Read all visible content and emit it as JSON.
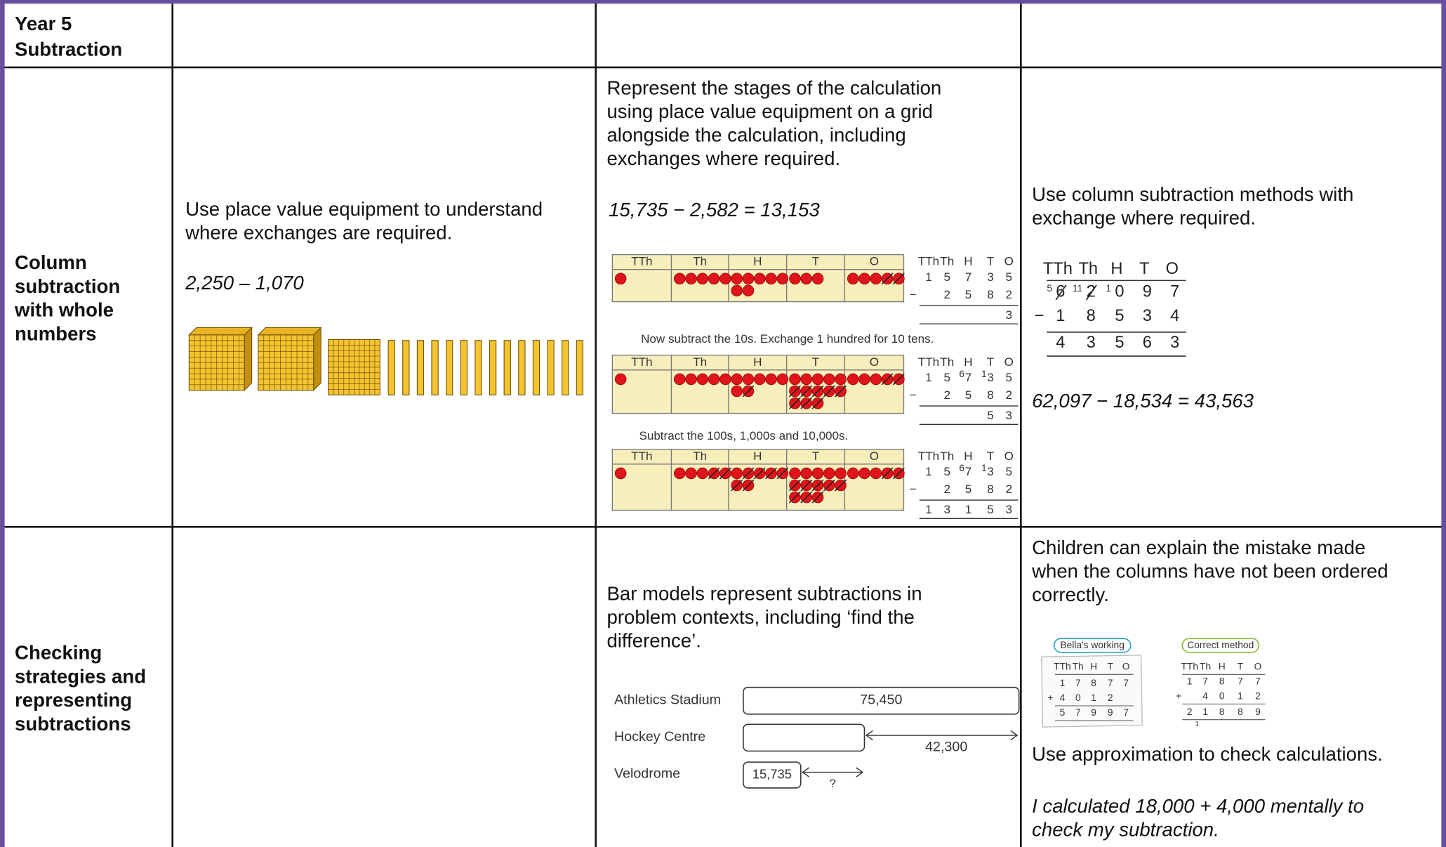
{
  "header": {
    "title": [
      "Year 5",
      "Subtraction"
    ]
  },
  "rows": [
    {
      "heading": [
        "Column",
        "subtraction",
        "with whole",
        "numbers"
      ],
      "concrete": {
        "text": [
          "Use place value equipment to understand",
          "where exchanges are required."
        ],
        "example": "2,250 – 1,070"
      },
      "pictorial": {
        "text": [
          "Represent the stages of the calculation",
          "using place value equipment on a grid",
          "alongside the calculation, including",
          "exchanges where required."
        ],
        "equation": "15,735 − 2,582 = 13,153",
        "headers": [
          "TTh",
          "Th",
          "H",
          "T",
          "O"
        ],
        "operator": "−",
        "captions": [
          "Now subtract the 10s. Exchange 1 hundred for 10 tens.",
          "Subtract the 100s, 1,000s and 10,000s."
        ],
        "panels": [
          {
            "counters": [
              1,
              5,
              7,
              3,
              5
            ],
            "crossed": [
              0,
              0,
              0,
              0,
              2
            ],
            "exchange": [
              null,
              null,
              null,
              null,
              null
            ],
            "top": [
              "1",
              "5",
              "7",
              "3",
              "5"
            ],
            "subtract": [
              null,
              "2",
              "5",
              "8",
              "2"
            ],
            "answer": [
              null,
              null,
              null,
              null,
              "3"
            ]
          },
          {
            "counters": [
              1,
              5,
              7,
              13,
              5
            ],
            "crossed": [
              0,
              0,
              1,
              8,
              2
            ],
            "exchange": [
              null,
              null,
              "6",
              "1",
              null
            ],
            "top": [
              "1",
              "5",
              "7",
              "3",
              "5"
            ],
            "subtract": [
              null,
              "2",
              "5",
              "8",
              "2"
            ],
            "answer": [
              null,
              null,
              null,
              "5",
              "3"
            ]
          },
          {
            "counters": [
              1,
              5,
              7,
              13,
              5
            ],
            "crossed": [
              0,
              2,
              6,
              8,
              2
            ],
            "exchange": [
              null,
              null,
              "6",
              "1",
              null
            ],
            "top": [
              "1",
              "5",
              "7",
              "3",
              "5"
            ],
            "subtract": [
              null,
              "2",
              "5",
              "8",
              "2"
            ],
            "answer": [
              "1",
              "3",
              "1",
              "5",
              "3"
            ]
          }
        ]
      },
      "abstract": {
        "text": [
          "Use column subtraction methods with",
          "exchange where required."
        ],
        "headers": [
          "TTh",
          "Th",
          "H",
          "T",
          "O"
        ],
        "exchange": [
          "5",
          "11",
          "1",
          null,
          null
        ],
        "top": [
          "6",
          "2",
          "0",
          "9",
          "7"
        ],
        "subtract": [
          "1",
          "8",
          "5",
          "3",
          "4"
        ],
        "answer": [
          "4",
          "3",
          "5",
          "6",
          "3"
        ],
        "operator": "−",
        "equation": "62,097 − 18,534 = 43,563"
      }
    },
    {
      "heading": [
        "Checking",
        "strategies and",
        "representing",
        "subtractions"
      ],
      "pictorial": {
        "text": [
          "Bar models represent subtractions in",
          "problem contexts, including ‘find the",
          "difference’."
        ],
        "bars": [
          {
            "label": "Athletics Stadium",
            "value": {
              "value": 75450,
              "label": "75,450"
            }
          },
          {
            "label": "Hockey Centre"
          },
          {
            "label": "Velodrome",
            "value": {
              "value": 15735,
              "label": "15,735"
            }
          }
        ],
        "difference": {
          "value": 42300,
          "label": "42,300"
        },
        "unknown": "?"
      },
      "abstract": {
        "text": [
          "Children can explain the mistake made",
          "when the columns have not been ordered",
          "correctly."
        ],
        "headers": [
          "TTh",
          "Th",
          "H",
          "T",
          "O"
        ],
        "operator": "+",
        "bella": {
          "tag": "Bella's working",
          "rows": [
            [
              "1",
              "7",
              "8",
              "7",
              "7"
            ],
            [
              "4",
              "0",
              "1",
              "2",
              null
            ]
          ],
          "answer": [
            "5",
            "7",
            "9",
            "9",
            "7"
          ]
        },
        "correct": {
          "tag": "Correct method",
          "rows": [
            [
              "1",
              "7",
              "8",
              "7",
              "7"
            ],
            [
              null,
              "4",
              "0",
              "1",
              "2"
            ]
          ],
          "answer": [
            "2",
            "1",
            "8",
            "8",
            "9"
          ],
          "carry": [
            null,
            "1",
            null,
            null,
            null
          ]
        },
        "check": "Use approximation to check calculations.",
        "example": [
          "I calculated 18,000 + 4,000 mentally to",
          "check my subtraction."
        ]
      }
    }
  ]
}
